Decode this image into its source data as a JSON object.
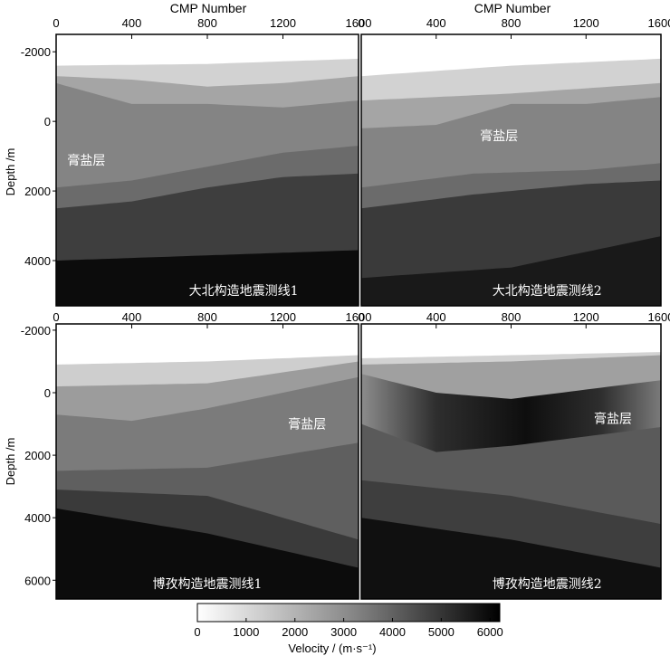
{
  "figure": {
    "x_axis_title": "CMP Number",
    "y_axis_title": "Depth /m",
    "x_ticks": [
      "0",
      "400",
      "800",
      "1200",
      "1600"
    ],
    "y_ticks_top": [
      "-2000",
      "0",
      "2000",
      "4000"
    ],
    "y_ticks_bottom": [
      "-2000",
      "0",
      "2000",
      "4000",
      "6000"
    ],
    "colorbar": {
      "title": "Velocity / (m·s⁻¹)",
      "ticks": [
        "0",
        "1000",
        "2000",
        "3000",
        "4000",
        "5000",
        "6000"
      ],
      "range": [
        0,
        6200
      ],
      "colormap": "gray_reversed"
    }
  },
  "chart_data": [
    {
      "type": "heatmap",
      "title": "大北构造地震测线1",
      "annotation": "膏盐层",
      "xlabel": "CMP Number",
      "ylabel": "Depth /m",
      "xlim": [
        0,
        1600
      ],
      "ylim": [
        -2500,
        5300
      ],
      "value_label": "Velocity (m/s)",
      "layers": [
        {
          "velocity": 5900,
          "top_depth_at_cmp": [
            [
              0,
              4000
            ],
            [
              1600,
              3700
            ]
          ]
        },
        {
          "velocity": 4700,
          "top_depth_at_cmp": [
            [
              0,
              2500
            ],
            [
              400,
              2300
            ],
            [
              800,
              1900
            ],
            [
              1200,
              1600
            ],
            [
              1600,
              1500
            ]
          ]
        },
        {
          "velocity": 3600,
          "top_depth_at_cmp": [
            [
              0,
              1900
            ],
            [
              400,
              1700
            ],
            [
              800,
              1300
            ],
            [
              1200,
              900
            ],
            [
              1600,
              700
            ]
          ]
        },
        {
          "velocity": 3000,
          "top_depth_at_cmp": [
            [
              0,
              -1100
            ],
            [
              400,
              -500
            ],
            [
              800,
              -500
            ],
            [
              1200,
              -400
            ],
            [
              1600,
              -600
            ]
          ]
        },
        {
          "velocity": 2200,
          "top_depth_at_cmp": [
            [
              0,
              -1300
            ],
            [
              400,
              -1200
            ],
            [
              800,
              -1000
            ],
            [
              1200,
              -1100
            ],
            [
              1600,
              -1300
            ]
          ]
        },
        {
          "velocity": 1100,
          "top_depth_at_cmp": [
            [
              0,
              -1600
            ],
            [
              800,
              -1650
            ],
            [
              1600,
              -1800
            ]
          ]
        }
      ]
    },
    {
      "type": "heatmap",
      "title": "大北构造地震测线2",
      "annotation": "膏盐层",
      "xlabel": "CMP Number",
      "ylabel": "Depth /m",
      "xlim": [
        0,
        1600
      ],
      "ylim": [
        -2500,
        5300
      ],
      "value_label": "Velocity (m/s)",
      "layers": [
        {
          "velocity": 5600,
          "top_depth_at_cmp": [
            [
              0,
              4500
            ],
            [
              800,
              4200
            ],
            [
              1600,
              3300
            ]
          ]
        },
        {
          "velocity": 4800,
          "top_depth_at_cmp": [
            [
              0,
              2500
            ],
            [
              600,
              2100
            ],
            [
              1200,
              1800
            ],
            [
              1600,
              1700
            ]
          ]
        },
        {
          "velocity": 3600,
          "top_depth_at_cmp": [
            [
              0,
              1900
            ],
            [
              600,
              1500
            ],
            [
              1200,
              1400
            ],
            [
              1600,
              1200
            ]
          ]
        },
        {
          "velocity": 3000,
          "top_depth_at_cmp": [
            [
              0,
              200
            ],
            [
              400,
              100
            ],
            [
              800,
              -500
            ],
            [
              1200,
              -500
            ],
            [
              1600,
              -700
            ]
          ]
        },
        {
          "velocity": 2200,
          "top_depth_at_cmp": [
            [
              0,
              -600
            ],
            [
              800,
              -800
            ],
            [
              1600,
              -1100
            ]
          ]
        },
        {
          "velocity": 1100,
          "top_depth_at_cmp": [
            [
              0,
              -1300
            ],
            [
              800,
              -1600
            ],
            [
              1600,
              -1800
            ]
          ]
        }
      ]
    },
    {
      "type": "heatmap",
      "title": "博孜构造地震测线1",
      "annotation": "膏盐层",
      "xlabel": "CMP Number",
      "ylabel": "Depth /m",
      "xlim": [
        0,
        1600
      ],
      "ylim": [
        -2200,
        6600
      ],
      "value_label": "Velocity (m/s)",
      "layers": [
        {
          "velocity": 5900,
          "top_depth_at_cmp": [
            [
              0,
              3700
            ],
            [
              800,
              4500
            ],
            [
              1600,
              5600
            ]
          ]
        },
        {
          "velocity": 4800,
          "top_depth_at_cmp": [
            [
              0,
              3100
            ],
            [
              800,
              3300
            ],
            [
              1600,
              4700
            ]
          ]
        },
        {
          "velocity": 3900,
          "top_depth_at_cmp": [
            [
              0,
              2500
            ],
            [
              800,
              2400
            ],
            [
              1200,
              2000
            ],
            [
              1600,
              1600
            ]
          ]
        },
        {
          "velocity": 3200,
          "top_depth_at_cmp": [
            [
              0,
              700
            ],
            [
              400,
              900
            ],
            [
              800,
              500
            ],
            [
              1600,
              -500
            ]
          ]
        },
        {
          "velocity": 2400,
          "top_depth_at_cmp": [
            [
              0,
              -200
            ],
            [
              800,
              -300
            ],
            [
              1600,
              -1000
            ]
          ]
        },
        {
          "velocity": 1200,
          "top_depth_at_cmp": [
            [
              0,
              -900
            ],
            [
              800,
              -1000
            ],
            [
              1600,
              -1200
            ]
          ]
        }
      ]
    },
    {
      "type": "heatmap",
      "title": "博孜构造地震测线2",
      "annotation": "膏盐层",
      "xlabel": "CMP Number",
      "ylabel": "Depth /m",
      "xlim": [
        0,
        1600
      ],
      "ylim": [
        -2200,
        6600
      ],
      "value_label": "Velocity (m/s)",
      "layers": [
        {
          "velocity": 5800,
          "top_depth_at_cmp": [
            [
              0,
              4000
            ],
            [
              800,
              4700
            ],
            [
              1600,
              5600
            ]
          ]
        },
        {
          "velocity": 4700,
          "top_depth_at_cmp": [
            [
              0,
              2800
            ],
            [
              800,
              3300
            ],
            [
              1600,
              4200
            ]
          ]
        },
        {
          "velocity": 4000,
          "top_depth_at_cmp": [
            [
              0,
              1000
            ],
            [
              400,
              1900
            ],
            [
              800,
              1700
            ],
            [
              1200,
              1400
            ],
            [
              1600,
              1100
            ]
          ]
        },
        {
          "velocity": 5200,
          "top_depth_at_cmp": [
            [
              0,
              -600
            ],
            [
              400,
              0
            ],
            [
              800,
              200
            ],
            [
              1600,
              -400
            ]
          ]
        },
        {
          "velocity": 2300,
          "top_depth_at_cmp": [
            [
              0,
              -900
            ],
            [
              800,
              -1000
            ],
            [
              1600,
              -1200
            ]
          ]
        },
        {
          "velocity": 1100,
          "top_depth_at_cmp": [
            [
              0,
              -1100
            ],
            [
              1600,
              -1300
            ]
          ]
        }
      ]
    }
  ]
}
